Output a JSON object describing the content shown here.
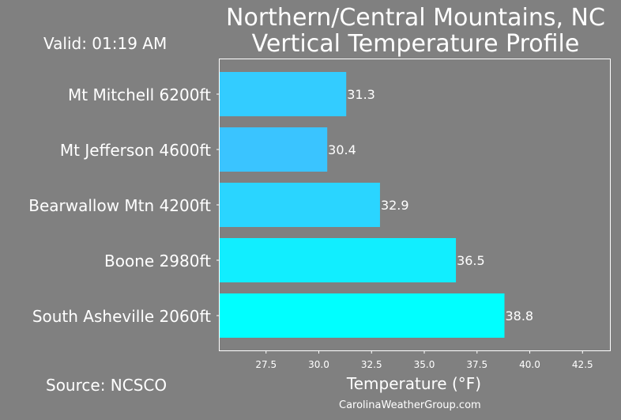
{
  "header": {
    "title_line1": "Northern/Central Mountains, NC",
    "title_line2": "Vertical Temperature Profile",
    "valid": "Valid: 01:19 AM"
  },
  "footer": {
    "source": "Source: NCSCO",
    "site": "CarolinaWeatherGroup.com"
  },
  "colors": {
    "background": "#808080",
    "text": "#ffffff"
  },
  "chart_data": {
    "type": "bar",
    "orientation": "horizontal",
    "title": "Northern/Central Mountains, NC Vertical Temperature Profile",
    "xlabel": "Temperature (°F)",
    "ylabel": "",
    "xlim": [
      25.3,
      43.8
    ],
    "xticks": [
      27.5,
      30.0,
      32.5,
      35.0,
      37.5,
      40.0,
      42.5
    ],
    "xtick_labels": [
      "27.5",
      "30.0",
      "32.5",
      "35.0",
      "37.5",
      "40.0",
      "42.5"
    ],
    "grid": false,
    "bars": [
      {
        "label": "Mt Mitchell 6200ft",
        "value": 31.3,
        "value_label": "31.3",
        "color": "#33ccff"
      },
      {
        "label": "Mt Jefferson 4600ft",
        "value": 30.4,
        "value_label": "30.4",
        "color": "#3ac4ff"
      },
      {
        "label": "Bearwallow Mtn 4200ft",
        "value": 32.9,
        "value_label": "32.9",
        "color": "#2ad5ff"
      },
      {
        "label": "Boone 2980ft",
        "value": 36.5,
        "value_label": "36.5",
        "color": "#11eeff"
      },
      {
        "label": "South Asheville 2060ft",
        "value": 38.8,
        "value_label": "38.8",
        "color": "#00ffff"
      }
    ]
  }
}
